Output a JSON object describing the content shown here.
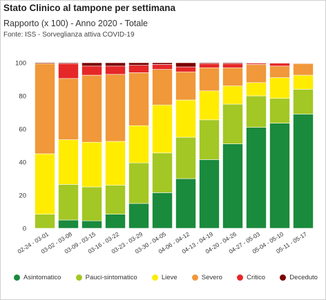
{
  "header": {
    "title": "Stato Clinico al tampone per settimana",
    "subtitle": "Rapporto (x 100) - Anno 2020 - Totale",
    "source": "Fonte: ISS - Sorveglianza attiva COVID-19"
  },
  "chart_data": {
    "type": "bar",
    "stacked": true,
    "categories": [
      "02-24 - 03-01",
      "03-02 - 03-08",
      "03-09 - 03-15",
      "03-16 - 03-22",
      "03-23 - 03-29",
      "03-30 - 04-05",
      "04-06 - 04-12",
      "04-13 - 04-19",
      "04-20 - 04-26",
      "04-27 - 05-03",
      "05-04 - 05-10",
      "05-11 - 05-17"
    ],
    "series": [
      {
        "name": "Asintomatico",
        "color": "#1a8a3c",
        "values": [
          0,
          5,
          4.5,
          8.5,
          15,
          21.5,
          30,
          41.5,
          51,
          61,
          63.5,
          69
        ]
      },
      {
        "name": "Pauci-sintomatico",
        "color": "#a3c724",
        "values": [
          8.5,
          21.5,
          20.5,
          17.5,
          24.5,
          24,
          25,
          24,
          24,
          19,
          15,
          15
        ]
      },
      {
        "name": "Lieve",
        "color": "#ffec00",
        "values": [
          36.5,
          27,
          27,
          26.5,
          22.5,
          29,
          22.5,
          17.5,
          11,
          8,
          12.5,
          8.5
        ]
      },
      {
        "name": "Severo",
        "color": "#f0983a",
        "values": [
          54.5,
          37,
          40.5,
          40.5,
          32,
          21.5,
          17,
          14,
          11,
          11,
          7,
          7
        ]
      },
      {
        "name": "Critico",
        "color": "#e62728",
        "values": [
          0,
          9,
          5.5,
          5,
          4.5,
          3,
          3,
          2.5,
          2.5,
          0.7,
          1.7,
          0.3
        ]
      },
      {
        "name": "Deceduto",
        "color": "#7b0000",
        "values": [
          0.5,
          0.5,
          2,
          2,
          1.5,
          1,
          2.5,
          0.5,
          0.5,
          0.3,
          0.3,
          0.2
        ]
      }
    ],
    "yticks": [
      0,
      20,
      40,
      60,
      80,
      100
    ],
    "ylim": [
      0,
      100
    ],
    "legend_position": "bottom",
    "grid": false
  }
}
